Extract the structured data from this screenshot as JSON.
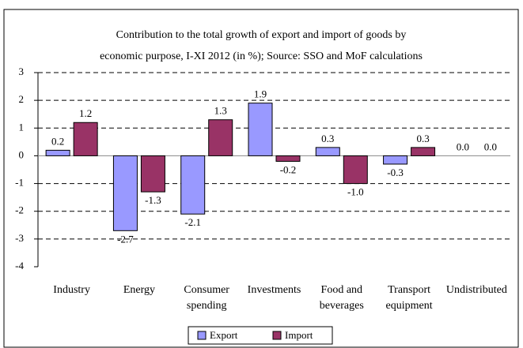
{
  "chart_data": {
    "type": "bar",
    "title": [
      "Contribution to the total growth of export and import of goods by",
      "economic purpose, I-XI 2012 (in %); Source: SSO and MoF calculations"
    ],
    "categories": [
      "Industry",
      "Energy",
      "Consumer\nspending",
      "Investments",
      "Food and\nbeverages",
      "Transport\nequipment",
      "Undistributed"
    ],
    "series": [
      {
        "name": "Export",
        "color": "#9999ff",
        "values": [
          0.2,
          -2.7,
          -2.1,
          1.9,
          0.3,
          -0.3,
          0
        ],
        "value_labels": [
          "0.2",
          "-2.7",
          "-2.1",
          "1.9",
          "0.3",
          "-0.3",
          "0.0"
        ]
      },
      {
        "name": "Import",
        "color": "#993366",
        "values": [
          1.2,
          -1.3,
          1.3,
          -0.2,
          -1.0,
          0.3,
          0
        ],
        "value_labels": [
          "1.2",
          "-1.3",
          "1.3",
          "-0.2",
          "-1.0",
          "0.3",
          "0.0"
        ]
      }
    ],
    "ylim": [
      -4,
      3
    ],
    "yticks": [
      3,
      2,
      1,
      0,
      -1,
      -2,
      -3,
      -4
    ],
    "grid": true,
    "legend": "bottom"
  }
}
